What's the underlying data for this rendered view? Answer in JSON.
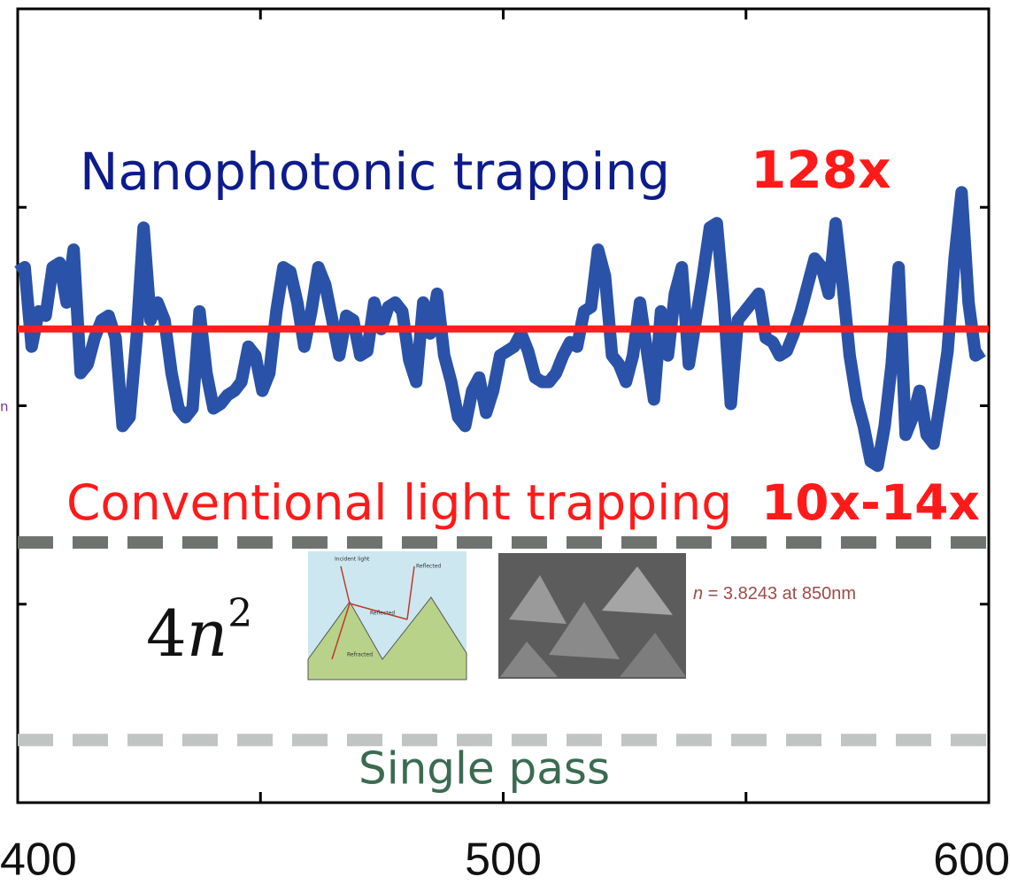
{
  "chart_data": {
    "type": "line",
    "xlim": [
      400,
      600
    ],
    "xticks": [
      400,
      500,
      600
    ],
    "xminor": [
      450,
      550
    ],
    "ylim": [
      0,
      900
    ],
    "yticks": [
      225,
      450,
      675
    ],
    "series": [
      {
        "color": "#2a52a8",
        "x": [
          400,
          401.44,
          402.88,
          404.32,
          405.76,
          407.2,
          408.64,
          410.08,
          411.52,
          412.96,
          414.4,
          415.84,
          417.28,
          418.72,
          420.16,
          421.6,
          423.04,
          424.48,
          425.92,
          427.36,
          428.8,
          430.24,
          431.68,
          433.12,
          434.56,
          436,
          437.44,
          438.88,
          440.32,
          441.76,
          443.2,
          444.64,
          446.08,
          447.52,
          448.96,
          450.4,
          451.84,
          453.28,
          454.72,
          456.16,
          457.6,
          459.04,
          460.48,
          461.92,
          463.36,
          464.8,
          466.24,
          467.68,
          469.12,
          470.56,
          472,
          473.44,
          474.88,
          476.32,
          477.76,
          479.2,
          480.64,
          482.08,
          483.52,
          484.96,
          486.4,
          487.84,
          489.28,
          490.72,
          492.16,
          493.6,
          495.04,
          496.48,
          497.92,
          499.36,
          500.8,
          502.24,
          503.68,
          505.12,
          506.56,
          508,
          509.44,
          510.88,
          512.32,
          513.76,
          515.2,
          516.64,
          518.08,
          519.52,
          520.96,
          522.4,
          523.84,
          525.28,
          526.72,
          528.16,
          529.6,
          531.04,
          532.48,
          533.92,
          535.36,
          536.8,
          538.24,
          539.68,
          541.12,
          542.56,
          544,
          545.44,
          546.88,
          548.32,
          549.76,
          551.2,
          552.64,
          554.08,
          555.52,
          556.96,
          558.4,
          559.84,
          561.28,
          562.72,
          564.16,
          565.6,
          567.04,
          568.48,
          569.92,
          571.36,
          572.8,
          574.24,
          575.68,
          577.12,
          578.56,
          580,
          581.44,
          582.88,
          584.32,
          585.76,
          587.2,
          588.64,
          590.08,
          591.52,
          592.96,
          594.4,
          595.84,
          597.28,
          598.72
        ],
        "values": [
          602,
          607,
          517,
          557,
          552,
          607,
          612,
          567,
          627,
          487,
          497,
          527,
          547,
          552,
          527,
          427,
          437,
          527,
          652,
          547,
          567,
          547,
          487,
          447,
          437,
          447,
          557,
          487,
          447,
          452,
          462,
          467,
          477,
          517,
          507,
          467,
          487,
          557,
          607,
          602,
          567,
          517,
          557,
          607,
          587,
          547,
          507,
          552,
          547,
          507,
          512,
          567,
          537,
          562,
          567,
          557,
          502,
          477,
          567,
          532,
          577,
          507,
          477,
          437,
          427,
          467,
          482,
          442,
          467,
          507,
          512,
          517,
          532,
          512,
          482,
          477,
          477,
          487,
          507,
          522,
          517,
          557,
          562,
          627,
          597,
          507,
          497,
          477,
          507,
          567,
          512,
          457,
          557,
          507,
          577,
          607,
          497,
          547,
          597,
          652,
          657,
          567,
          452,
          547,
          557,
          567,
          577,
          527,
          522,
          507,
          512,
          532,
          557,
          587,
          617,
          607,
          577,
          657,
          587,
          507,
          457,
          427,
          387,
          382,
          427,
          497,
          607,
          417,
          437,
          467,
          417,
          407,
          457,
          512,
          617,
          692,
          567,
          507,
          512
        ]
      },
      {
        "color": "#ff1e1e",
        "x": [
          400,
          600
        ],
        "values": [
          537,
          537
        ]
      },
      {
        "color": "#6e7370",
        "dashed": true,
        "x": [
          400,
          600
        ],
        "values": [
          295,
          295
        ]
      },
      {
        "color": "#c0c4c2",
        "dashed": true,
        "x": [
          400,
          600
        ],
        "values": [
          71,
          71
        ]
      }
    ],
    "annotations": {
      "nanophotonic": "Nanophotonic trapping",
      "nanophotonic_factor": "128x",
      "conventional": "Conventional light trapping",
      "conventional_factor": "10x-14x",
      "single_pass": "Single pass",
      "formula": [
        "4",
        "n",
        "2"
      ],
      "index_note": [
        "n",
        " = 3.8243 at 850nm"
      ],
      "axis_fragment": "n",
      "inset_labels": [
        "Incident light",
        "Reflected",
        "Reflected",
        "Refracted"
      ]
    }
  }
}
